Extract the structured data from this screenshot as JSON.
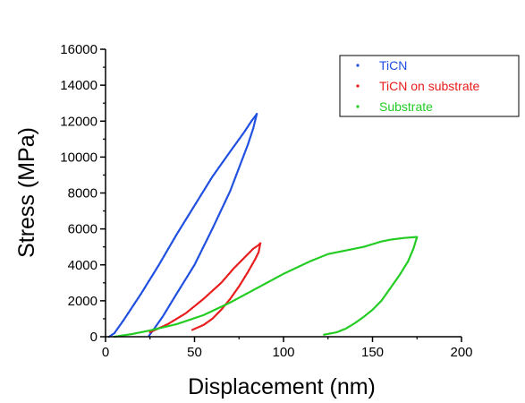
{
  "chart_data": {
    "type": "scatter",
    "xlabel": "Displacement (nm)",
    "ylabel": "Stress (MPa)",
    "xlim": [
      0,
      200
    ],
    "ylim": [
      0,
      16000
    ],
    "xticks": [
      0,
      50,
      100,
      150,
      200
    ],
    "yticks": [
      0,
      2000,
      4000,
      6000,
      8000,
      10000,
      12000,
      14000,
      16000
    ],
    "xtick_labels": [
      "0",
      "50",
      "100",
      "150",
      "200"
    ],
    "ytick_labels": [
      "0",
      "2000",
      "4000",
      "6000",
      "8000",
      "10000",
      "12000",
      "14000",
      "16000"
    ],
    "grid": false,
    "legend_position": "top-right",
    "series": [
      {
        "name": "TiCN",
        "color": "#1f4fe0",
        "loading": [
          [
            2,
            0
          ],
          [
            5,
            200
          ],
          [
            10,
            900
          ],
          [
            20,
            2400
          ],
          [
            30,
            4000
          ],
          [
            40,
            5700
          ],
          [
            50,
            7300
          ],
          [
            60,
            8900
          ],
          [
            70,
            10300
          ],
          [
            78,
            11400
          ],
          [
            82,
            12000
          ],
          [
            85,
            12400
          ]
        ],
        "unloading": [
          [
            85,
            12400
          ],
          [
            83,
            11600
          ],
          [
            80,
            10700
          ],
          [
            75,
            9400
          ],
          [
            70,
            8100
          ],
          [
            60,
            6000
          ],
          [
            50,
            4000
          ],
          [
            40,
            2400
          ],
          [
            32,
            1100
          ],
          [
            27,
            400
          ],
          [
            24,
            0
          ]
        ]
      },
      {
        "name": "TiCN on substrate",
        "color": "#e81c1c",
        "loading": [
          [
            25,
            250
          ],
          [
            35,
            700
          ],
          [
            45,
            1300
          ],
          [
            55,
            2100
          ],
          [
            65,
            3000
          ],
          [
            72,
            3800
          ],
          [
            78,
            4400
          ],
          [
            83,
            4900
          ],
          [
            86,
            5100
          ],
          [
            87,
            5200
          ]
        ],
        "unloading": [
          [
            87,
            5200
          ],
          [
            86,
            4700
          ],
          [
            84,
            4300
          ],
          [
            80,
            3600
          ],
          [
            75,
            2800
          ],
          [
            70,
            2100
          ],
          [
            65,
            1500
          ],
          [
            60,
            1000
          ],
          [
            55,
            650
          ],
          [
            48,
            350
          ]
        ]
      },
      {
        "name": "Substrate",
        "color": "#22cc22",
        "loading": [
          [
            5,
            0
          ],
          [
            15,
            150
          ],
          [
            25,
            350
          ],
          [
            40,
            700
          ],
          [
            55,
            1200
          ],
          [
            70,
            1900
          ],
          [
            85,
            2700
          ],
          [
            100,
            3500
          ],
          [
            115,
            4200
          ],
          [
            125,
            4600
          ],
          [
            135,
            4800
          ],
          [
            145,
            5000
          ],
          [
            155,
            5300
          ],
          [
            160,
            5400
          ],
          [
            168,
            5500
          ],
          [
            175,
            5550
          ]
        ],
        "unloading": [
          [
            175,
            5550
          ],
          [
            173,
            4900
          ],
          [
            170,
            4200
          ],
          [
            165,
            3400
          ],
          [
            160,
            2700
          ],
          [
            155,
            2000
          ],
          [
            150,
            1500
          ],
          [
            145,
            1100
          ],
          [
            140,
            750
          ],
          [
            135,
            450
          ],
          [
            130,
            250
          ],
          [
            122,
            100
          ]
        ]
      }
    ]
  }
}
